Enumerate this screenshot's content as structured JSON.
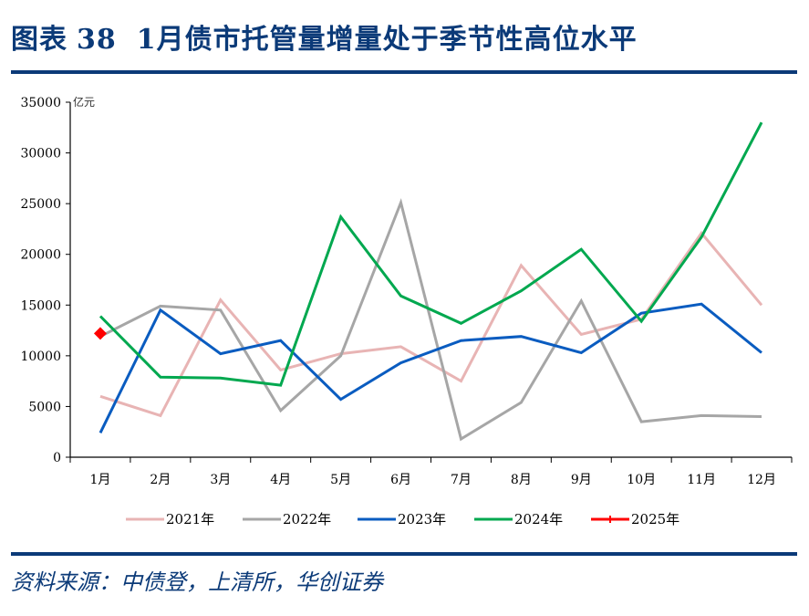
{
  "header": {
    "figure_label": "图表",
    "figure_number": "38",
    "title": "1月债市托管量增量处于季节性高位水平"
  },
  "footer": {
    "source": "资料来源：中债登，上清所，华创证券"
  },
  "colors": {
    "title": "#0b3a78",
    "rule": "#0b3a78",
    "s2021": "#e8b4b4",
    "s2022": "#a6a6a6",
    "s2023": "#0a5cc0",
    "s2024": "#00a84f",
    "s2025": "#ff0000"
  },
  "chart_data": {
    "type": "line",
    "title": "1月债市托管量增量处于季节性高位水平",
    "xlabel": "",
    "ylabel": "亿元",
    "unit_label": "亿元",
    "ylim": [
      0,
      35000
    ],
    "yticks": [
      0,
      5000,
      10000,
      15000,
      20000,
      25000,
      30000,
      35000
    ],
    "grid": false,
    "legend_position": "bottom",
    "categories": [
      "1月",
      "2月",
      "3月",
      "4月",
      "5月",
      "6月",
      "7月",
      "8月",
      "9月",
      "10月",
      "11月",
      "12月"
    ],
    "series": [
      {
        "name": "2021年",
        "color": "#e8b4b4",
        "values": [
          6000,
          4100,
          15500,
          8600,
          10200,
          10900,
          7500,
          18900,
          12100,
          13600,
          22100,
          15000
        ]
      },
      {
        "name": "2022年",
        "color": "#a6a6a6",
        "values": [
          11900,
          14900,
          14500,
          4600,
          10000,
          25100,
          1800,
          5400,
          15400,
          3500,
          4100,
          4000
        ]
      },
      {
        "name": "2023年",
        "color": "#0a5cc0",
        "values": [
          2400,
          14500,
          10200,
          11500,
          5700,
          9300,
          11500,
          11900,
          10300,
          14200,
          15100,
          10300
        ]
      },
      {
        "name": "2024年",
        "color": "#00a84f",
        "values": [
          13900,
          7900,
          7800,
          7100,
          23700,
          15900,
          13200,
          16400,
          20500,
          13400,
          21700,
          33000
        ]
      },
      {
        "name": "2025年",
        "color": "#ff0000",
        "marker": "diamond",
        "values": [
          12200
        ]
      }
    ]
  }
}
